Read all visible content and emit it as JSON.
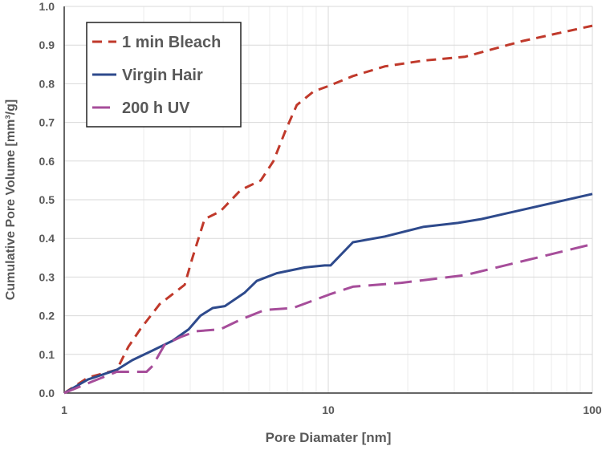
{
  "chart_data": {
    "type": "line",
    "title": "",
    "xlabel": "Pore Diamater [nm]",
    "ylabel": "Cumulative Pore Volume [mm³/g]",
    "xscale": "log",
    "xlim": [
      1,
      100
    ],
    "ylim": [
      0,
      1.0
    ],
    "xticks": [
      "1",
      "10",
      "100"
    ],
    "yticks": [
      "0.0",
      "0.1",
      "0.2",
      "0.3",
      "0.4",
      "0.5",
      "0.6",
      "0.7",
      "0.8",
      "0.9",
      "1.0"
    ],
    "grid": true,
    "legend_position": "top-left",
    "series": [
      {
        "name": "1 min Bleach",
        "color": "#c0392b",
        "style": "dashed",
        "x": [
          1,
          1.23,
          1.58,
          1.75,
          1.94,
          2.3,
          2.86,
          3.06,
          3.4,
          3.9,
          4.66,
          5.55,
          6.2,
          6.9,
          7.6,
          8.8,
          10.1,
          12.4,
          16.4,
          23,
          33,
          54,
          100
        ],
        "y": [
          0,
          0.04,
          0.06,
          0.12,
          0.165,
          0.23,
          0.28,
          0.35,
          0.45,
          0.47,
          0.525,
          0.55,
          0.6,
          0.68,
          0.745,
          0.78,
          0.795,
          0.82,
          0.845,
          0.86,
          0.87,
          0.91,
          0.95
        ]
      },
      {
        "name": "Virgin Hair",
        "color": "#2e4a8c",
        "style": "solid",
        "x": [
          1,
          1.23,
          1.58,
          1.81,
          2.16,
          2.57,
          2.96,
          3.28,
          3.65,
          4.06,
          4.83,
          5.36,
          6.38,
          8.16,
          9.7,
          10.2,
          12.4,
          16.4,
          23,
          31,
          38,
          100
        ],
        "y": [
          0,
          0.035,
          0.06,
          0.085,
          0.11,
          0.135,
          0.165,
          0.2,
          0.22,
          0.225,
          0.26,
          0.29,
          0.31,
          0.325,
          0.33,
          0.33,
          0.39,
          0.405,
          0.43,
          0.44,
          0.45,
          0.515
        ]
      },
      {
        "name": "200 h UV",
        "color": "#a64d9a",
        "style": "long-dashed",
        "x": [
          1,
          1.28,
          1.58,
          2.05,
          2.16,
          2.4,
          2.76,
          3.17,
          3.9,
          4.66,
          5.75,
          7.35,
          10.1,
          12.4,
          18.9,
          33,
          100
        ],
        "y": [
          0,
          0.03,
          0.055,
          0.055,
          0.07,
          0.125,
          0.145,
          0.16,
          0.165,
          0.19,
          0.215,
          0.22,
          0.255,
          0.275,
          0.285,
          0.305,
          0.385
        ]
      }
    ]
  }
}
